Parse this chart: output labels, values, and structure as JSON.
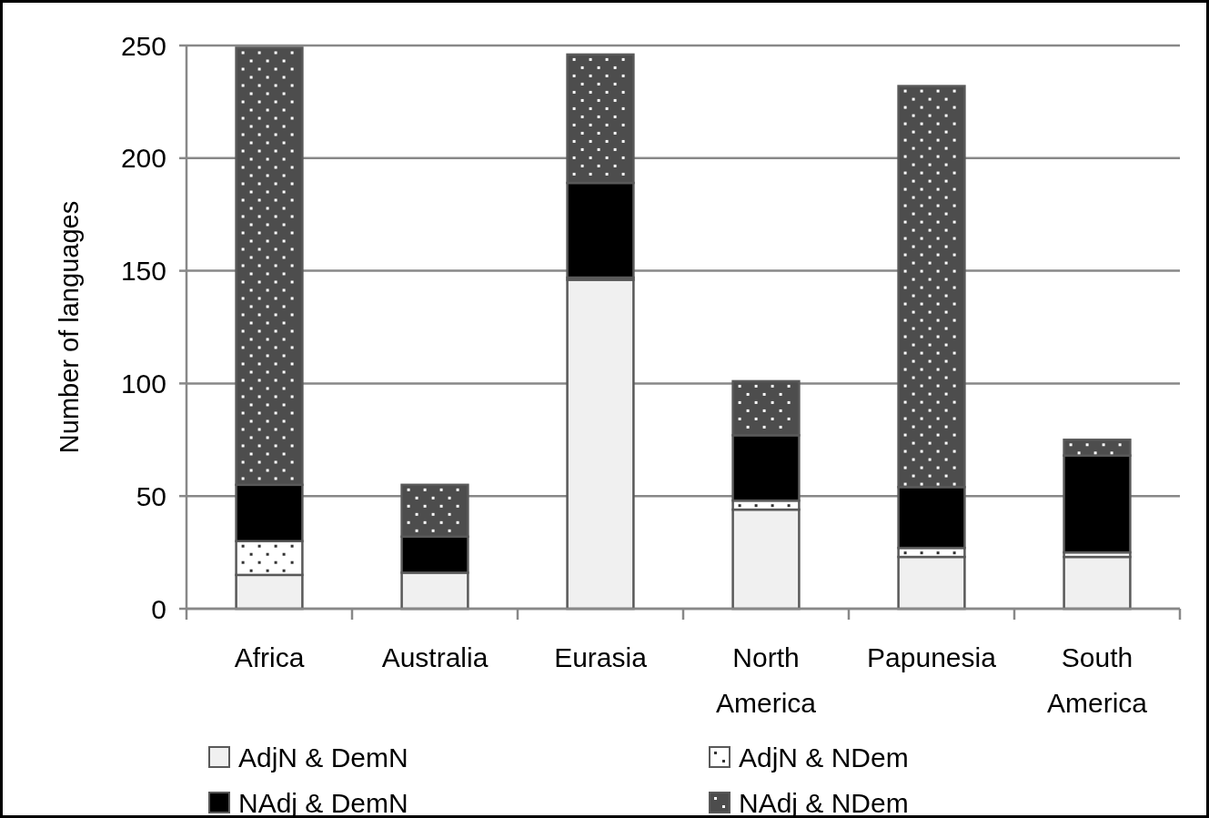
{
  "chart_data": {
    "type": "bar",
    "stacked": true,
    "ylabel": "Number of languages",
    "categories": [
      "Africa",
      "Australia",
      "Eurasia",
      "North America",
      "Papunesia",
      "South America"
    ],
    "series": [
      {
        "name": "AdjN & DemN",
        "color": "#f0f0f0",
        "values": [
          15,
          16,
          146,
          44,
          23,
          23
        ]
      },
      {
        "name": "AdjN & NDem",
        "color": "#ffffff",
        "values": [
          15,
          0,
          1,
          4,
          4,
          2
        ]
      },
      {
        "name": "NAdj & DemN",
        "color": "#000000",
        "values": [
          25,
          16,
          42,
          29,
          27,
          43
        ]
      },
      {
        "name": "NAdj & NDem",
        "color": "#4d4d4d",
        "values": [
          194,
          23,
          57,
          24,
          178,
          7
        ]
      }
    ],
    "ylim": [
      0,
      250
    ],
    "yticks": [
      0,
      50,
      100,
      150,
      200,
      250
    ],
    "grid": "y",
    "legend": "bottom"
  }
}
